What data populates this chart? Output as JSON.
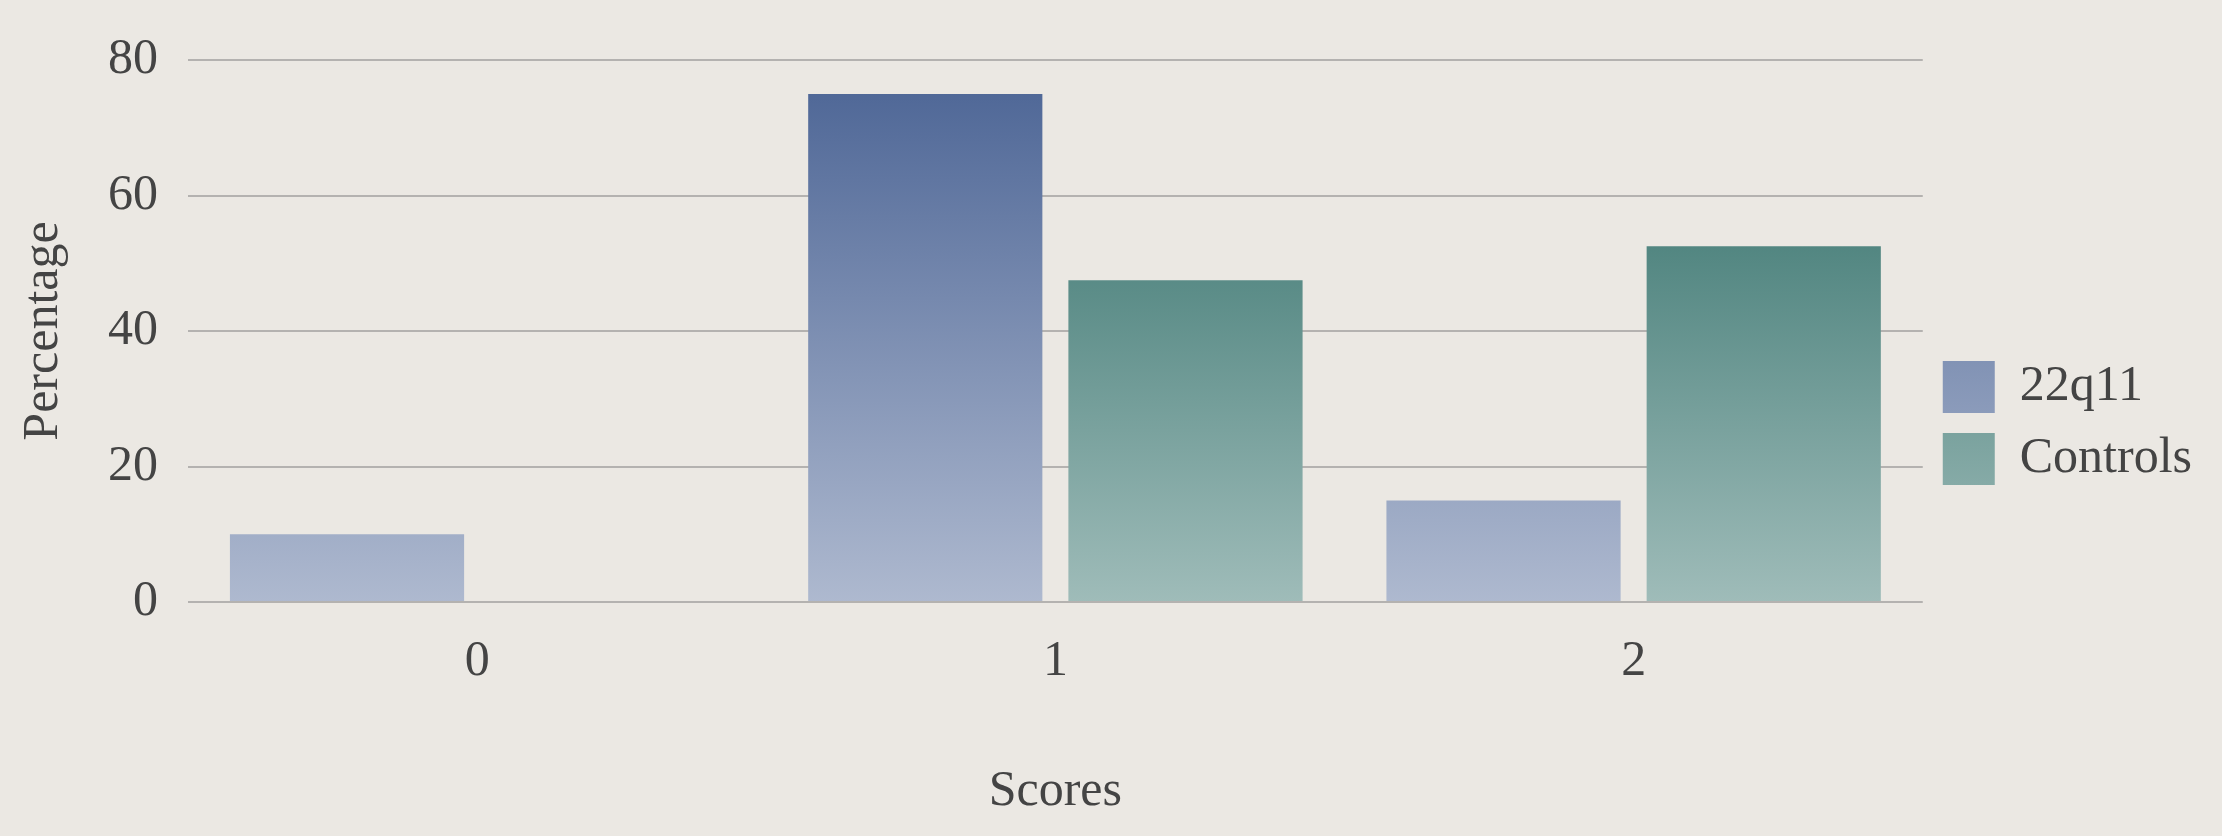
{
  "chart_data": {
    "type": "bar",
    "xlabel": "Scores",
    "ylabel": "Percentage",
    "categories": [
      "0",
      "1",
      "2"
    ],
    "series": [
      {
        "name": "22q11",
        "color": "#4a6394",
        "values": [
          10,
          75,
          15
        ]
      },
      {
        "name": "Controls",
        "color": "#2a6a64",
        "values": [
          0,
          47.5,
          52.5
        ]
      }
    ],
    "ylim": [
      0,
      80
    ],
    "yticks": [
      0,
      20,
      40,
      60,
      80
    ],
    "grid": "y",
    "legend": "right"
  }
}
